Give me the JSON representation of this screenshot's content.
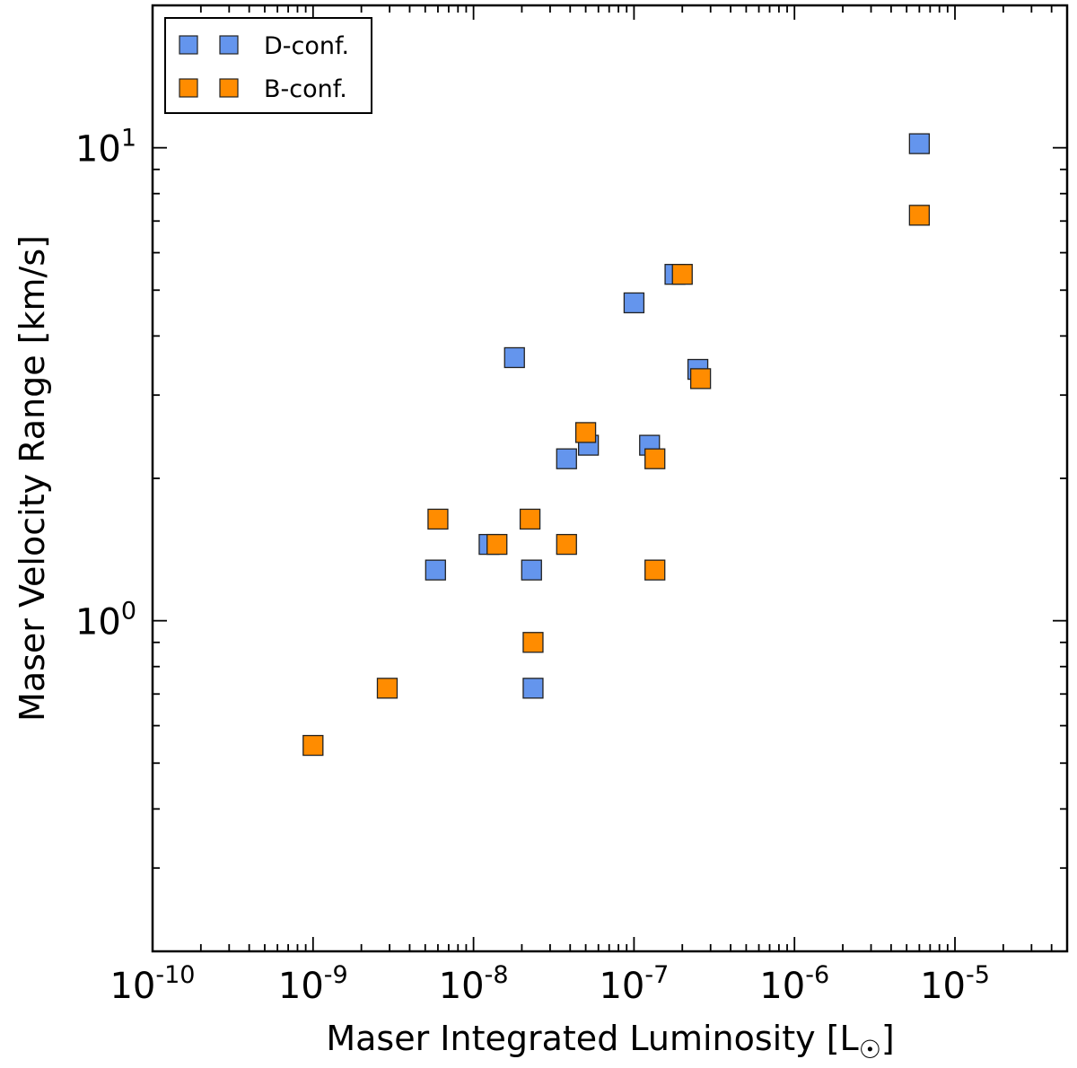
{
  "chart_data": {
    "type": "scatter",
    "title": "",
    "xlabel": "Maser Integrated Luminosity [L",
    "xlabel_symbol": "☉",
    "xlabel_close": "]",
    "ylabel": "Maser Velocity Range [km/s]",
    "xscale": "log",
    "yscale": "log",
    "xlim": [
      1e-10,
      5e-05
    ],
    "ylim": [
      0.2,
      20
    ],
    "legend_position": "top-left",
    "x_ticks": [
      {
        "value": 1e-10,
        "base": "10",
        "exp": "-10"
      },
      {
        "value": 1e-09,
        "base": "10",
        "exp": "-9"
      },
      {
        "value": 1e-08,
        "base": "10",
        "exp": "-8"
      },
      {
        "value": 1e-07,
        "base": "10",
        "exp": "-7"
      },
      {
        "value": 1e-06,
        "base": "10",
        "exp": "-6"
      },
      {
        "value": 1e-05,
        "base": "10",
        "exp": "-5"
      }
    ],
    "y_ticks": [
      {
        "value": 1,
        "base": "10",
        "exp": "0"
      },
      {
        "value": 10,
        "base": "10",
        "exp": "1"
      }
    ],
    "series": [
      {
        "name": "D-conf.",
        "color": "#6495ED",
        "points": [
          {
            "x": 6e-06,
            "y": 10.2
          },
          {
            "x": 1.8e-07,
            "y": 5.4
          },
          {
            "x": 1e-07,
            "y": 4.7
          },
          {
            "x": 1.8e-08,
            "y": 3.6
          },
          {
            "x": 2.5e-07,
            "y": 3.4
          },
          {
            "x": 5.2e-08,
            "y": 2.35
          },
          {
            "x": 1.25e-07,
            "y": 2.35
          },
          {
            "x": 3.8e-08,
            "y": 2.2
          },
          {
            "x": 1.25e-08,
            "y": 1.45
          },
          {
            "x": 5.8e-09,
            "y": 1.28
          },
          {
            "x": 2.3e-08,
            "y": 1.28
          },
          {
            "x": 2.35e-08,
            "y": 0.72
          }
        ]
      },
      {
        "name": "B-conf.",
        "color": "#FF8C00",
        "points": [
          {
            "x": 6e-06,
            "y": 7.2
          },
          {
            "x": 2e-07,
            "y": 5.4
          },
          {
            "x": 2.6e-07,
            "y": 3.25
          },
          {
            "x": 5e-08,
            "y": 2.5
          },
          {
            "x": 1.35e-07,
            "y": 2.2
          },
          {
            "x": 6e-09,
            "y": 1.64
          },
          {
            "x": 2.25e-08,
            "y": 1.64
          },
          {
            "x": 1.4e-08,
            "y": 1.45
          },
          {
            "x": 3.8e-08,
            "y": 1.45
          },
          {
            "x": 1.35e-07,
            "y": 1.28
          },
          {
            "x": 2.35e-08,
            "y": 0.9
          },
          {
            "x": 2.9e-09,
            "y": 0.72
          },
          {
            "x": 1e-09,
            "y": 0.545
          }
        ]
      }
    ]
  }
}
